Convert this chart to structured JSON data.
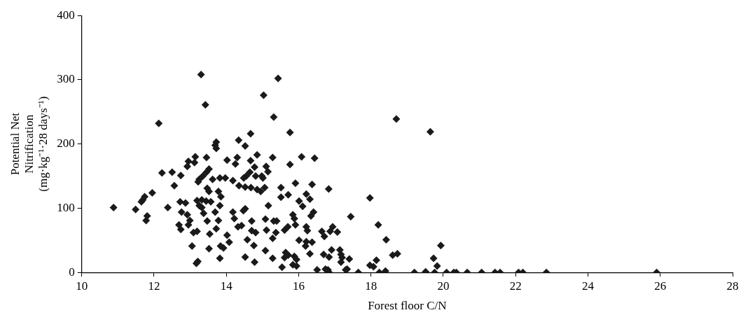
{
  "chart_data": {
    "type": "scatter",
    "xlabel": "Forest floor C/N",
    "ylabel": "Potential Net\nNitrification\n(mg·kg⁻¹·28 days⁻¹)",
    "xlim": [
      10,
      28
    ],
    "xticks": [
      10,
      12,
      14,
      16,
      18,
      20,
      22,
      24,
      26,
      28
    ],
    "ylim": [
      0,
      400
    ],
    "yticks": [
      0,
      100,
      200,
      300,
      400
    ],
    "marker": "diamond",
    "legend": false,
    "series": [
      {
        "color": "#1a1a1a",
        "x": [
          13.3,
          13.42,
          12.13,
          13.72,
          13.69,
          13.72,
          13.14,
          13.45,
          12.95,
          13.12,
          12.92,
          12.22,
          12.5,
          12.74,
          13.52,
          13.45,
          13.35,
          13.25,
          13.22,
          13.62,
          13.82,
          13.97,
          12.56,
          11.95,
          11.74,
          11.69,
          11.65,
          10.88,
          11.49,
          12.38,
          11.81,
          11.78,
          12.72,
          12.87,
          13.19,
          13.32,
          13.44,
          13.57,
          13.25,
          13.32,
          13.47,
          13.52,
          13.78,
          13.85,
          13.82,
          13.69,
          13.37,
          12.76,
          12.92,
          12.99,
          12.95,
          12.69,
          12.74,
          13.47,
          13.78,
          13.09,
          13.19,
          13.54,
          13.72,
          13.05,
          13.52,
          13.84,
          13.92,
          13.82,
          13.21,
          13.17,
          15.43,
          15.03,
          15.31,
          14.67,
          15.76,
          14.34,
          14.52,
          14.85,
          14.02,
          14.3,
          14.25,
          14.67,
          14.78,
          15.28,
          15.76,
          16.08,
          16.44,
          15.1,
          15.15,
          14.65,
          14.55,
          14.48,
          14.81,
          14.98,
          15.01,
          14.18,
          14.35,
          14.52,
          14.68,
          14.85,
          14.95,
          15.06,
          15.51,
          15.71,
          15.51,
          15.91,
          16.37,
          16.83,
          16.21,
          16.31,
          16.01,
          16.11,
          15.16,
          14.52,
          14.47,
          14.18,
          14.22,
          14.7,
          15.08,
          15.31,
          15.39,
          15.84,
          15.88,
          15.91,
          16.41,
          16.34,
          17.44,
          14.32,
          14.42,
          14.7,
          14.81,
          15.11,
          15.37,
          15.28,
          15.61,
          15.7,
          16.21,
          16.24,
          16.64,
          16.94,
          16.87,
          17.07,
          16.71,
          14.58,
          14.76,
          16.01,
          16.21,
          16.37,
          16.19,
          15.08,
          15.28,
          14.52,
          14.78,
          15.64,
          15.71,
          15.61,
          15.88,
          15.94,
          15.84,
          15.94,
          16.31,
          16.69,
          16.84,
          16.91,
          17.14,
          17.17,
          17.2,
          17.17,
          17.4,
          15.54,
          16.51,
          16.74,
          16.81,
          16.84,
          17.3,
          17.34,
          14.02,
          14.08,
          18.7,
          19.64,
          17.97,
          18.2,
          18.42,
          18.6,
          18.73,
          18.15,
          17.97,
          18.07,
          19.93,
          19.73,
          19.83,
          17.65,
          18.23,
          18.4,
          19.2,
          19.51,
          19.76,
          20.09,
          20.29,
          20.36,
          20.66,
          21.06,
          21.43,
          21.57,
          22.08,
          22.2,
          22.85,
          25.9
        ],
        "values": [
          308,
          261,
          232,
          203,
          198,
          193,
          180,
          179,
          173,
          171,
          165,
          155,
          156,
          151,
          161,
          156,
          150,
          145,
          141,
          145,
          147,
          147,
          135,
          124,
          118,
          113,
          110,
          101,
          98,
          101,
          88,
          81,
          110,
          108,
          112,
          113,
          111,
          110,
          104,
          101,
          131,
          126,
          126,
          118,
          104,
          94,
          92,
          94,
          90,
          81,
          74,
          74,
          67,
          80,
          81,
          62,
          64,
          60,
          68,
          41,
          37,
          41,
          38,
          22,
          17,
          14,
          302,
          276,
          242,
          216,
          218,
          206,
          197,
          183,
          175,
          179,
          169,
          174,
          164,
          179,
          168,
          180,
          178,
          165,
          157,
          156,
          150,
          147,
          150,
          150,
          147,
          143,
          135,
          133,
          132,
          129,
          126,
          132,
          132,
          121,
          117,
          139,
          137,
          130,
          122,
          114,
          111,
          103,
          104,
          99,
          96,
          94,
          84,
          80,
          83,
          80,
          80,
          90,
          84,
          74,
          94,
          88,
          87,
          71,
          73,
          65,
          62,
          66,
          62,
          53,
          66,
          71,
          71,
          65,
          64,
          71,
          64,
          63,
          56,
          51,
          42,
          50,
          48,
          47,
          41,
          34,
          22,
          24,
          16,
          31,
          27,
          23,
          25,
          20,
          12,
          10,
          29,
          28,
          24,
          35,
          35,
          28,
          23,
          16,
          21,
          8,
          4,
          5,
          4,
          0,
          4,
          5,
          58,
          47,
          239,
          219,
          116,
          74,
          51,
          27,
          29,
          19,
          11,
          9,
          42,
          22,
          10,
          0,
          0,
          2,
          0,
          1,
          0,
          0,
          0,
          0,
          0,
          0,
          0,
          0,
          0,
          0,
          0,
          0
        ]
      }
    ]
  }
}
